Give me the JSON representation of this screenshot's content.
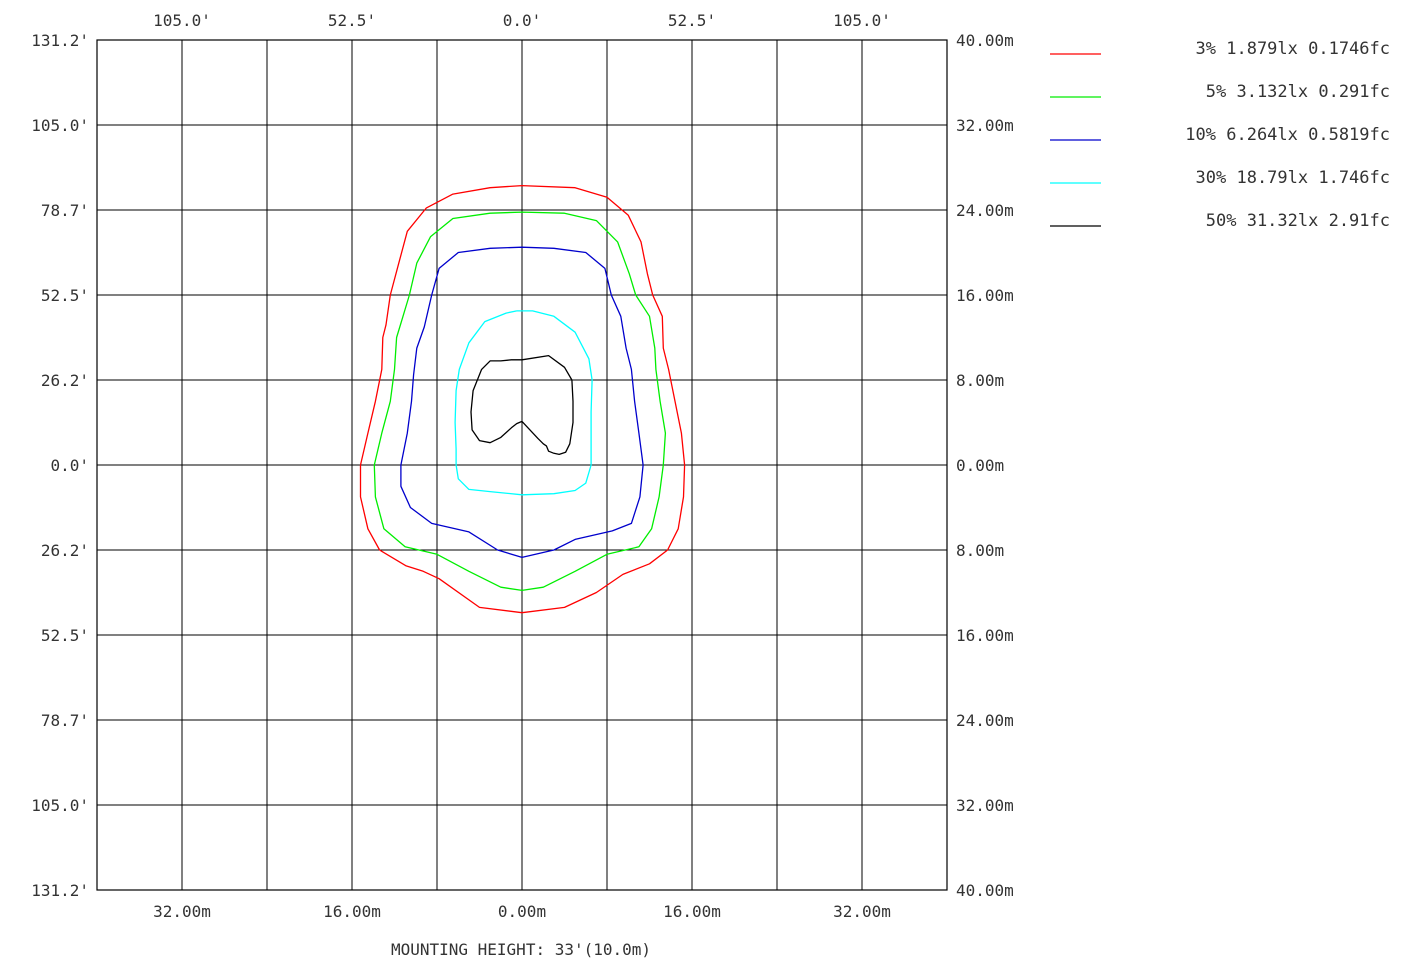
{
  "chart_data": {
    "type": "line",
    "subtype": "isofootcandle-contour",
    "grid": true,
    "footer_label": "MOUNTING HEIGHT: 33'(10.0m)",
    "axes": {
      "range_m": [
        -40,
        40
      ],
      "gridlines_m": [
        -40,
        -32,
        -24,
        -16,
        -8,
        0,
        8,
        16,
        24,
        32,
        40
      ],
      "top_ticks": [
        {
          "value_m": -32,
          "label": "105.0'"
        },
        {
          "value_m": -16,
          "label": "52.5'"
        },
        {
          "value_m": 0,
          "label": "0.0'"
        },
        {
          "value_m": 16,
          "label": "52.5'"
        },
        {
          "value_m": 32,
          "label": "105.0'"
        }
      ],
      "bottom_ticks": [
        {
          "value_m": -32,
          "label": "32.00m"
        },
        {
          "value_m": -16,
          "label": "16.00m"
        },
        {
          "value_m": 0,
          "label": "0.00m"
        },
        {
          "value_m": 16,
          "label": "16.00m"
        },
        {
          "value_m": 32,
          "label": "32.00m"
        }
      ],
      "left_ticks": [
        {
          "value_m": 40,
          "label": "131.2'"
        },
        {
          "value_m": 32,
          "label": "105.0'"
        },
        {
          "value_m": 24,
          "label": "78.7'"
        },
        {
          "value_m": 16,
          "label": "52.5'"
        },
        {
          "value_m": 8,
          "label": "26.2'"
        },
        {
          "value_m": 0,
          "label": "0.0'"
        },
        {
          "value_m": -8,
          "label": "26.2'"
        },
        {
          "value_m": -16,
          "label": "52.5'"
        },
        {
          "value_m": -24,
          "label": "78.7'"
        },
        {
          "value_m": -32,
          "label": "105.0'"
        },
        {
          "value_m": -40,
          "label": "131.2'"
        }
      ],
      "right_ticks": [
        {
          "value_m": 40,
          "label": "40.00m"
        },
        {
          "value_m": 32,
          "label": "32.00m"
        },
        {
          "value_m": 24,
          "label": "24.00m"
        },
        {
          "value_m": 16,
          "label": "16.00m"
        },
        {
          "value_m": 8,
          "label": "8.00m"
        },
        {
          "value_m": 0,
          "label": "0.00m"
        },
        {
          "value_m": -8,
          "label": "8.00m"
        },
        {
          "value_m": -16,
          "label": "16.00m"
        },
        {
          "value_m": -24,
          "label": "24.00m"
        },
        {
          "value_m": -32,
          "label": "32.00m"
        },
        {
          "value_m": -40,
          "label": "40.00m"
        }
      ]
    },
    "legend_position": "top-right",
    "series": [
      {
        "name": "3% 1.879lx 0.1746fc",
        "color": "#ff0000",
        "points": [
          [
            0,
            26.3
          ],
          [
            5,
            26.1
          ],
          [
            8,
            25.2
          ],
          [
            10,
            23.5
          ],
          [
            11.2,
            21
          ],
          [
            11.8,
            18
          ],
          [
            12.3,
            16
          ],
          [
            13.2,
            14
          ],
          [
            13.3,
            11
          ],
          [
            13.8,
            9
          ],
          [
            14.4,
            6
          ],
          [
            15,
            3
          ],
          [
            15.3,
            0
          ],
          [
            15.2,
            -3
          ],
          [
            14.7,
            -6
          ],
          [
            13.7,
            -8
          ],
          [
            12,
            -9.3
          ],
          [
            9.5,
            -10.3
          ],
          [
            7,
            -12
          ],
          [
            4,
            -13.4
          ],
          [
            0,
            -13.9
          ],
          [
            -4,
            -13.4
          ],
          [
            -7.8,
            -10.7
          ],
          [
            -9.3,
            -10
          ],
          [
            -10.9,
            -9.5
          ],
          [
            -13.4,
            -8
          ],
          [
            -14.5,
            -6
          ],
          [
            -15.2,
            -3
          ],
          [
            -15.2,
            0
          ],
          [
            -14.5,
            3
          ],
          [
            -13.8,
            6
          ],
          [
            -13.2,
            9
          ],
          [
            -13.1,
            12
          ],
          [
            -12.8,
            13.2
          ],
          [
            -12.4,
            16
          ],
          [
            -11.6,
            19
          ],
          [
            -10.8,
            22
          ],
          [
            -9,
            24.2
          ],
          [
            -6.5,
            25.5
          ],
          [
            -3,
            26.1
          ],
          [
            0,
            26.3
          ]
        ]
      },
      {
        "name": "5% 3.132lx 0.291fc",
        "color": "#00ee00",
        "points": [
          [
            0,
            23.8
          ],
          [
            4,
            23.7
          ],
          [
            7,
            23
          ],
          [
            9,
            21
          ],
          [
            10.1,
            18
          ],
          [
            10.7,
            16
          ],
          [
            12,
            14
          ],
          [
            12.5,
            11
          ],
          [
            12.6,
            9
          ],
          [
            13,
            6
          ],
          [
            13.5,
            3
          ],
          [
            13.3,
            0
          ],
          [
            12.9,
            -3
          ],
          [
            12.2,
            -6
          ],
          [
            11,
            -7.7
          ],
          [
            8,
            -8.4
          ],
          [
            5,
            -10
          ],
          [
            2,
            -11.5
          ],
          [
            0,
            -11.8
          ],
          [
            -2,
            -11.5
          ],
          [
            -5,
            -10
          ],
          [
            -8,
            -8.4
          ],
          [
            -11,
            -7.7
          ],
          [
            -13,
            -6
          ],
          [
            -13.8,
            -3
          ],
          [
            -13.9,
            0
          ],
          [
            -13.2,
            3
          ],
          [
            -12.4,
            6
          ],
          [
            -12,
            9
          ],
          [
            -11.8,
            12
          ],
          [
            -11.2,
            14
          ],
          [
            -10.6,
            16
          ],
          [
            -9.9,
            19
          ],
          [
            -8.6,
            21.5
          ],
          [
            -6.5,
            23.2
          ],
          [
            -3,
            23.7
          ],
          [
            0,
            23.8
          ]
        ]
      },
      {
        "name": "10% 6.264lx 0.5819fc",
        "color": "#0000cc",
        "points": [
          [
            0,
            20.5
          ],
          [
            3,
            20.4
          ],
          [
            6,
            20
          ],
          [
            7.8,
            18.5
          ],
          [
            8.4,
            16
          ],
          [
            9.3,
            14
          ],
          [
            9.8,
            11
          ],
          [
            10.3,
            9
          ],
          [
            10.6,
            6
          ],
          [
            11,
            3
          ],
          [
            11.4,
            0
          ],
          [
            11.1,
            -3
          ],
          [
            10.3,
            -5.5
          ],
          [
            8.5,
            -6.2
          ],
          [
            5,
            -7
          ],
          [
            3,
            -8
          ],
          [
            0,
            -8.7
          ],
          [
            -2.3,
            -8
          ],
          [
            -5,
            -6.3
          ],
          [
            -8.5,
            -5.5
          ],
          [
            -10.5,
            -4
          ],
          [
            -11.4,
            -2
          ],
          [
            -11.4,
            0
          ],
          [
            -10.8,
            3
          ],
          [
            -10.4,
            6
          ],
          [
            -10.2,
            8.5
          ],
          [
            -9.9,
            11
          ],
          [
            -9.2,
            13
          ],
          [
            -8.5,
            16
          ],
          [
            -7.8,
            18.5
          ],
          [
            -6,
            20
          ],
          [
            -3,
            20.4
          ],
          [
            0,
            20.5
          ]
        ]
      },
      {
        "name": "30% 18.79lx 1.746fc",
        "color": "#00ffff",
        "points": [
          [
            -0.5,
            14.5
          ],
          [
            1,
            14.5
          ],
          [
            3,
            14
          ],
          [
            5,
            12.5
          ],
          [
            6.3,
            10
          ],
          [
            6.6,
            8
          ],
          [
            6.5,
            5
          ],
          [
            6.5,
            2
          ],
          [
            6.5,
            0
          ],
          [
            6,
            -1.7
          ],
          [
            5,
            -2.4
          ],
          [
            3,
            -2.7
          ],
          [
            0,
            -2.8
          ],
          [
            -3,
            -2.5
          ],
          [
            -5,
            -2.3
          ],
          [
            -6,
            -1.3
          ],
          [
            -6.2,
            0
          ],
          [
            -6.2,
            1.5
          ],
          [
            -6.3,
            4
          ],
          [
            -6.2,
            7
          ],
          [
            -5.9,
            9
          ],
          [
            -5,
            11.5
          ],
          [
            -3.5,
            13.5
          ],
          [
            -1.5,
            14.3
          ],
          [
            -0.5,
            14.5
          ]
        ]
      },
      {
        "name": "50% 31.32lx 2.91fc",
        "color": "#000000",
        "points": [
          [
            0,
            9.9
          ],
          [
            2.5,
            10.3
          ],
          [
            4,
            9.2
          ],
          [
            4.7,
            8
          ],
          [
            4.8,
            6
          ],
          [
            4.8,
            4
          ],
          [
            4.5,
            2
          ],
          [
            4.1,
            1.2
          ],
          [
            3.5,
            1
          ],
          [
            3,
            1.1
          ],
          [
            2.5,
            1.3
          ],
          [
            2.3,
            1.8
          ],
          [
            2,
            2
          ],
          [
            1.5,
            2.5
          ],
          [
            0,
            4.1
          ],
          [
            -0.5,
            3.9
          ],
          [
            -1,
            3.5
          ],
          [
            -2,
            2.6
          ],
          [
            -3,
            2.1
          ],
          [
            -4,
            2.3
          ],
          [
            -4.7,
            3.3
          ],
          [
            -4.8,
            5
          ],
          [
            -4.6,
            7
          ],
          [
            -3.8,
            9
          ],
          [
            -3,
            9.8
          ],
          [
            -2,
            9.8
          ],
          [
            -1,
            9.9
          ],
          [
            0,
            9.9
          ]
        ]
      }
    ]
  }
}
